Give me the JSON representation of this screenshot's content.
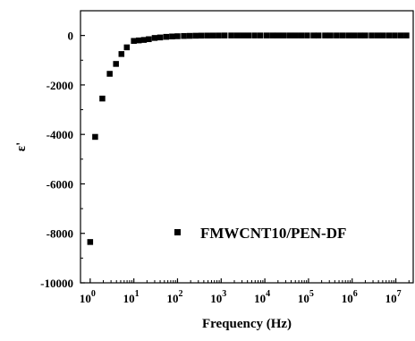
{
  "chart_data": {
    "type": "scatter",
    "title": "",
    "xlabel": "Frequency (Hz)",
    "ylabel": "ε'",
    "x_scale": "log",
    "xlim": [
      0.6,
      25000000
    ],
    "ylim": [
      -10000,
      1000
    ],
    "grid": false,
    "legend_position": "bottom-right",
    "y_ticks": [
      0,
      -2000,
      -4000,
      -6000,
      -8000,
      -10000
    ],
    "y_tick_labels": [
      "0",
      "-2000",
      "-4000",
      "-6000",
      "-8000",
      "-10000"
    ],
    "x_ticks": [
      1,
      10,
      100,
      1000,
      10000,
      100000,
      1000000,
      10000000
    ],
    "x_tick_labels": [
      {
        "base": "10",
        "exp": "0"
      },
      {
        "base": "10",
        "exp": "1"
      },
      {
        "base": "10",
        "exp": "2"
      },
      {
        "base": "10",
        "exp": "3"
      },
      {
        "base": "10",
        "exp": "4"
      },
      {
        "base": "10",
        "exp": "5"
      },
      {
        "base": "10",
        "exp": "6"
      },
      {
        "base": "10",
        "exp": "7"
      }
    ],
    "series": [
      {
        "name": "FMWCNT10/PEN-DF",
        "marker": "square",
        "color": "#000000",
        "points": [
          {
            "x": 1.0,
            "y": -8350
          },
          {
            "x": 1.3,
            "y": -4100
          },
          {
            "x": 1.9,
            "y": -2550
          },
          {
            "x": 2.8,
            "y": -1550
          },
          {
            "x": 3.9,
            "y": -1150
          },
          {
            "x": 5.2,
            "y": -750
          },
          {
            "x": 6.9,
            "y": -480
          },
          {
            "x": 10,
            "y": -220
          },
          {
            "x": 13,
            "y": -200
          },
          {
            "x": 17,
            "y": -180
          },
          {
            "x": 22,
            "y": -150
          },
          {
            "x": 30,
            "y": -100
          },
          {
            "x": 40,
            "y": -80
          },
          {
            "x": 55,
            "y": -55
          },
          {
            "x": 75,
            "y": -40
          },
          {
            "x": 100,
            "y": -30
          },
          {
            "x": 140,
            "y": -20
          },
          {
            "x": 190,
            "y": -15
          },
          {
            "x": 260,
            "y": -10
          },
          {
            "x": 350,
            "y": -6
          },
          {
            "x": 480,
            "y": -4
          },
          {
            "x": 650,
            "y": -3
          },
          {
            "x": 880,
            "y": -2
          },
          {
            "x": 1200,
            "y": 0
          },
          {
            "x": 1700,
            "y": 0
          },
          {
            "x": 2300,
            "y": 0
          },
          {
            "x": 3100,
            "y": 0
          },
          {
            "x": 4200,
            "y": 0
          },
          {
            "x": 5800,
            "y": 0
          },
          {
            "x": 7900,
            "y": 0
          },
          {
            "x": 11000,
            "y": 0
          },
          {
            "x": 15000,
            "y": 0
          },
          {
            "x": 20000,
            "y": 0
          },
          {
            "x": 27000,
            "y": 0
          },
          {
            "x": 37000,
            "y": 0
          },
          {
            "x": 50000,
            "y": 0
          },
          {
            "x": 68000,
            "y": 0
          },
          {
            "x": 93000,
            "y": 0
          },
          {
            "x": 130000,
            "y": 0
          },
          {
            "x": 170000,
            "y": 0
          },
          {
            "x": 240000,
            "y": 0
          },
          {
            "x": 320000,
            "y": 0
          },
          {
            "x": 440000,
            "y": 0
          },
          {
            "x": 600000,
            "y": 0
          },
          {
            "x": 820000,
            "y": 0
          },
          {
            "x": 1100000,
            "y": 0
          },
          {
            "x": 1500000,
            "y": 0
          },
          {
            "x": 2000000,
            "y": 0
          },
          {
            "x": 2800000,
            "y": 0
          },
          {
            "x": 3800000,
            "y": 0
          },
          {
            "x": 5100000,
            "y": 0
          },
          {
            "x": 7000000,
            "y": 0
          },
          {
            "x": 9500000,
            "y": 0
          },
          {
            "x": 13000000,
            "y": 0
          },
          {
            "x": 17500000,
            "y": 0
          }
        ]
      }
    ]
  }
}
